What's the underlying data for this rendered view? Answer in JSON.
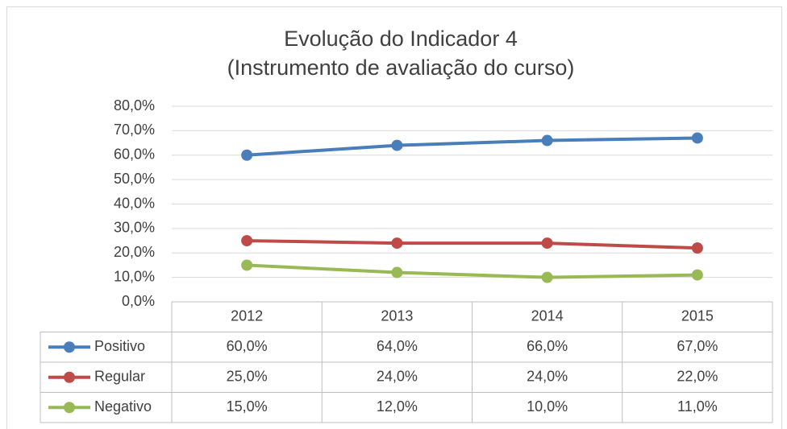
{
  "chart_data": {
    "type": "line",
    "title": "Evolução do Indicador 4",
    "subtitle": "(Instrumento de avaliação do curso)",
    "categories": [
      "2012",
      "2013",
      "2014",
      "2015"
    ],
    "series": [
      {
        "name": "Positivo",
        "color": "#4a7ebb",
        "values": [
          60,
          64,
          66,
          67
        ],
        "value_labels": [
          "60,0%",
          "64,0%",
          "66,0%",
          "67,0%"
        ]
      },
      {
        "name": "Regular",
        "color": "#be4b48",
        "values": [
          25,
          24,
          24,
          22
        ],
        "value_labels": [
          "25,0%",
          "24,0%",
          "24,0%",
          "22,0%"
        ]
      },
      {
        "name": "Negativo",
        "color": "#98b954",
        "values": [
          15,
          12,
          10,
          11
        ],
        "value_labels": [
          "15,0%",
          "12,0%",
          "10,0%",
          "11,0%"
        ]
      }
    ],
    "ylim": [
      0,
      80
    ],
    "yticks": [
      {
        "value": 0,
        "label": "0,0%"
      },
      {
        "value": 10,
        "label": "10,0%"
      },
      {
        "value": 20,
        "label": "20,0%"
      },
      {
        "value": 30,
        "label": "30,0%"
      },
      {
        "value": 40,
        "label": "40,0%"
      },
      {
        "value": 50,
        "label": "50,0%"
      },
      {
        "value": 60,
        "label": "60,0%"
      },
      {
        "value": 70,
        "label": "70,0%"
      },
      {
        "value": 80,
        "label": "80,0%"
      }
    ],
    "grid": true
  }
}
